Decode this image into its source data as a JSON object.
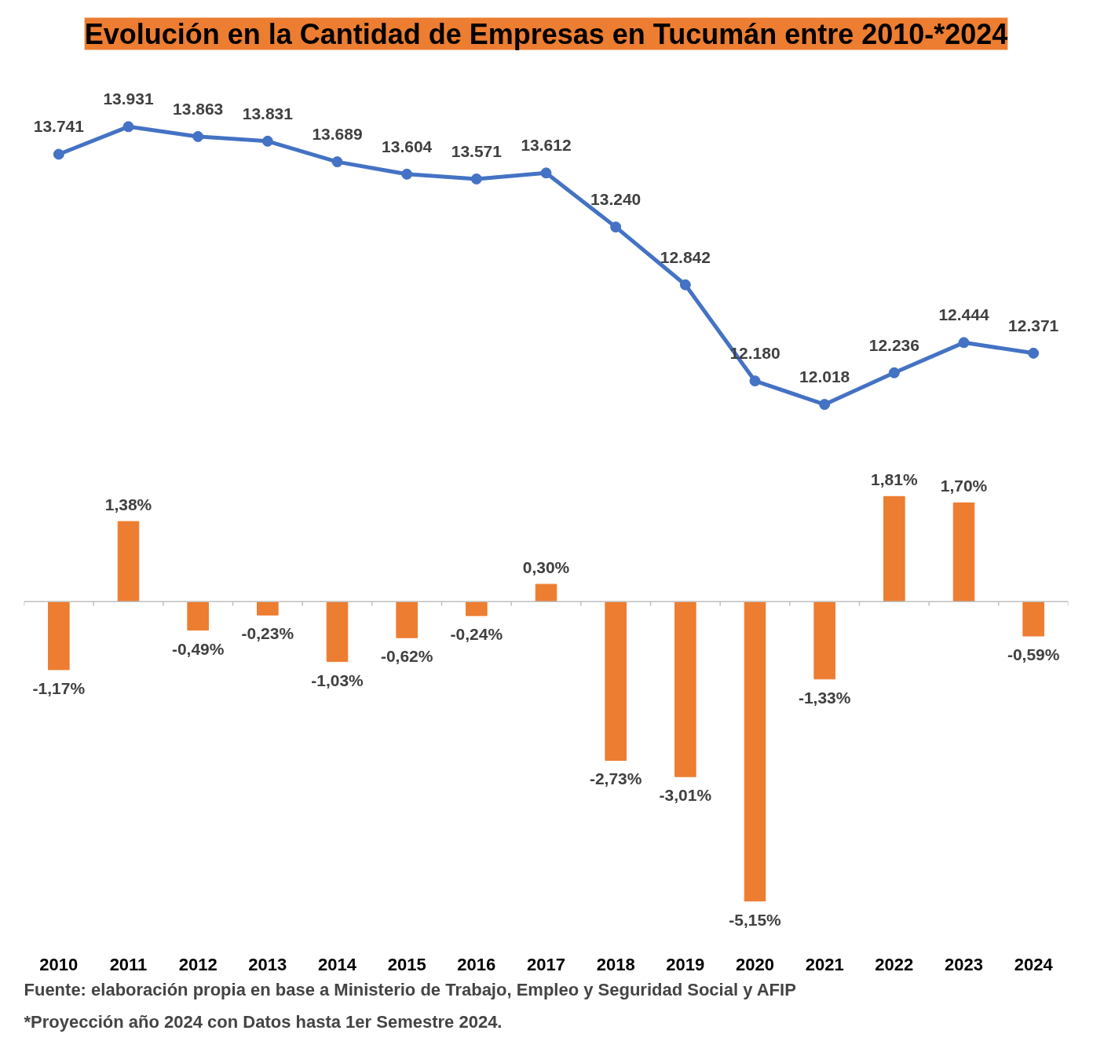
{
  "chart_data": [
    {
      "type": "line",
      "title": "Evolución en la Cantidad de Empresas en Tucumán entre 2010-*2024",
      "categories": [
        "2010",
        "2011",
        "2012",
        "2013",
        "2014",
        "2015",
        "2016",
        "2017",
        "2018",
        "2019",
        "2020",
        "2021",
        "2022",
        "2023",
        "2024"
      ],
      "series": [
        {
          "color": "#4472c4",
          "values": [
            13741,
            13931,
            13863,
            13831,
            13689,
            13604,
            13571,
            13612,
            13240,
            12842,
            12180,
            12018,
            12236,
            12444,
            12371
          ],
          "value_labels": [
            "13.741",
            "13.931",
            "13.863",
            "13.831",
            "13.689",
            "13.604",
            "13.571",
            "13.612",
            "13.240",
            "12.842",
            "12.180",
            "12.018",
            "12.236",
            "12.444",
            "12.371"
          ]
        }
      ],
      "marker": "circle",
      "grid": false,
      "tick_labels": false
    },
    {
      "type": "bar",
      "categories": [
        "2010",
        "2011",
        "2012",
        "2013",
        "2014",
        "2015",
        "2016",
        "2017",
        "2018",
        "2019",
        "2020",
        "2021",
        "2022",
        "2023",
        "2024"
      ],
      "series": [
        {
          "color": "#ed7d31",
          "values": [
            -1.17,
            1.38,
            -0.49,
            -0.23,
            -1.03,
            -0.62,
            -0.24,
            0.3,
            -2.73,
            -3.01,
            -5.15,
            -1.33,
            1.81,
            1.7,
            -0.59
          ],
          "value_labels": [
            "-1,17%",
            "1,38%",
            "-0,49%",
            "-0,23%",
            "-1,03%",
            "-0,62%",
            "-0,24%",
            "0,30%",
            "-2,73%",
            "-3,01%",
            "-5,15%",
            "-1,33%",
            "1,81%",
            "1,70%",
            "-0,59%"
          ]
        }
      ],
      "grid": false,
      "tick_labels": "x",
      "annotations": [
        "Fuente: elaboración propia en base a Ministerio de Trabajo, Empleo y Seguridad Social y AFIP",
        "*Proyección año 2024 con Datos hasta 1er Semestre 2024."
      ]
    }
  ]
}
